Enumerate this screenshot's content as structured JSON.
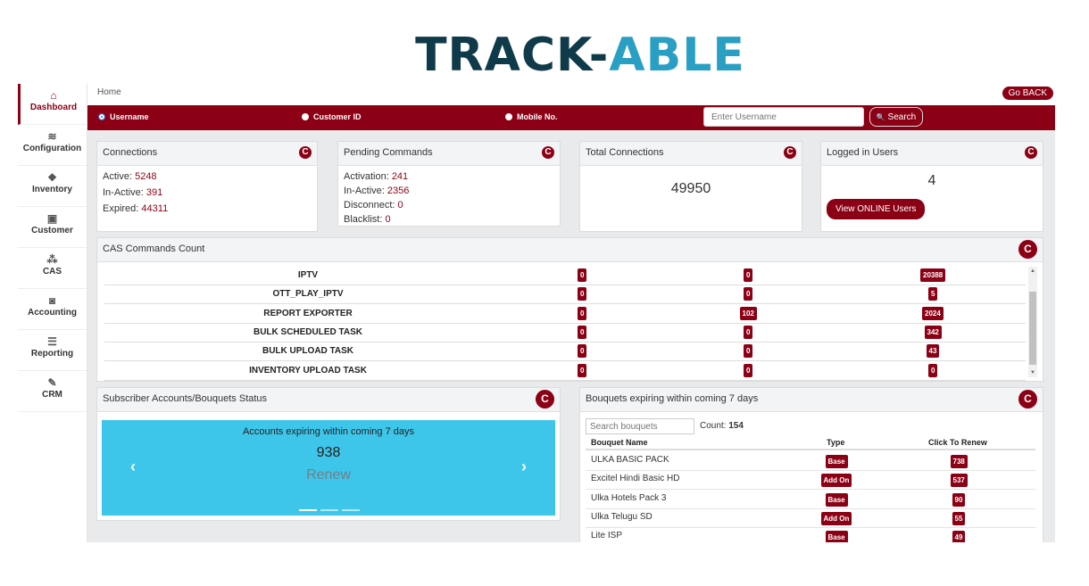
{
  "logo": {
    "part1": "TRACK-",
    "part2": "ABLE"
  },
  "sidebar": {
    "items": [
      {
        "label": "Dashboard",
        "icon": "home-icon",
        "glyph": "⌂"
      },
      {
        "label": "Configuration",
        "icon": "layers-icon",
        "glyph": "≋"
      },
      {
        "label": "Inventory",
        "icon": "cubes-icon",
        "glyph": "❖"
      },
      {
        "label": "Customer",
        "icon": "id-card-icon",
        "glyph": "▣"
      },
      {
        "label": "CAS",
        "icon": "sitemap-icon",
        "glyph": "⁂"
      },
      {
        "label": "Accounting",
        "icon": "money-icon",
        "glyph": "◙"
      },
      {
        "label": "Reporting",
        "icon": "list-icon",
        "glyph": "☰"
      },
      {
        "label": "CRM",
        "icon": "ticket-icon",
        "glyph": "✎"
      }
    ]
  },
  "breadcrumb": "Home",
  "go_back_label": "Go BACK",
  "search": {
    "options": [
      "Username",
      "Customer ID",
      "Mobile No."
    ],
    "placeholder": "Enter Username",
    "button_label": "Search",
    "button_icon_glyph": "🔍"
  },
  "connections": {
    "title": "Connections",
    "active_label": "Active:",
    "active": "5248",
    "inactive_label": "In-Active:",
    "inactive": "391",
    "expired_label": "Expired:",
    "expired": "44311"
  },
  "pending": {
    "title": "Pending Commands",
    "activation_label": "Activation:",
    "activation": "241",
    "inactive_label": "In-Active:",
    "inactive": "2356",
    "disconnect_label": "Disconnect:",
    "disconnect": "0",
    "blacklist_label": "Blacklist:",
    "blacklist": "0"
  },
  "total": {
    "title": "Total Connections",
    "value": "49950"
  },
  "logged": {
    "title": "Logged in Users",
    "value": "4",
    "button_label": "View ONLINE Users"
  },
  "refresh_glyph": "C",
  "cas": {
    "title": "CAS Commands Count",
    "rows": [
      {
        "name": "IPTV",
        "c1": "0",
        "c2": "0",
        "c3": "20388"
      },
      {
        "name": "OTT_PLAY_IPTV",
        "c1": "0",
        "c2": "0",
        "c3": "5"
      },
      {
        "name": "REPORT EXPORTER",
        "c1": "0",
        "c2": "102",
        "c3": "2024"
      },
      {
        "name": "BULK SCHEDULED TASK",
        "c1": "0",
        "c2": "0",
        "c3": "342"
      },
      {
        "name": "BULK UPLOAD TASK",
        "c1": "0",
        "c2": "0",
        "c3": "43"
      },
      {
        "name": "INVENTORY UPLOAD TASK",
        "c1": "0",
        "c2": "0",
        "c3": "0"
      }
    ]
  },
  "subscriber": {
    "title": "Subscriber Accounts/Bouquets Status",
    "slide_title": "Accounts expiring within coming 7 days",
    "slide_value": "938",
    "slide_link": "Renew"
  },
  "bouquets": {
    "title": "Bouquets expiring within coming 7 days",
    "search_placeholder": "Search bouquets",
    "count_label": "Count:",
    "count": "154",
    "headers": [
      "Bouquet Name",
      "Type",
      "Click To Renew"
    ],
    "rows": [
      {
        "name": "ULKA BASIC PACK",
        "type": "Base",
        "renew": "738"
      },
      {
        "name": "Excitel Hindi Basic HD",
        "type": "Add On",
        "renew": "537"
      },
      {
        "name": "Ulka Hotels Pack 3",
        "type": "Base",
        "renew": "90"
      },
      {
        "name": "Ulka Telugu SD",
        "type": "Add On",
        "renew": "55"
      },
      {
        "name": "Lite ISP",
        "type": "Base",
        "renew": "49"
      }
    ]
  },
  "colors": {
    "primary": "#8b0014",
    "carousel": "#3ec6ea",
    "background": "#e9eaec"
  }
}
